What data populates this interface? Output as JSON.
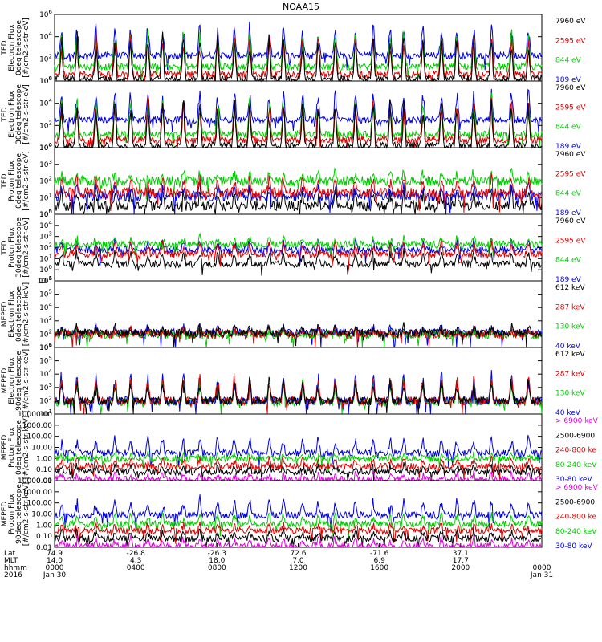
{
  "chart_data": {
    "type": "line",
    "title": "NOAA15",
    "x_range_hours": [
      0,
      24
    ],
    "seed_note": "",
    "panels": [
      {
        "id": "ted-e-0",
        "ylabel": [
          "TED",
          "Electron Flux",
          "0deg telescope",
          "[#/cm2-s-str-eV]"
        ],
        "yscale": "log",
        "ylim": [
          1,
          1000000
        ],
        "ticks": [
          "10^0",
          "10^2",
          "10^4",
          "10^6"
        ],
        "tick_exp": [
          0,
          2,
          4,
          6
        ],
        "tick_format": "pow",
        "legend": [
          {
            "label": "7960 eV",
            "color": "#000000"
          },
          {
            "label": "2595 eV",
            "color": "#dd0000"
          },
          {
            "label": "844 eV",
            "color": "#00cc00"
          },
          {
            "label": "189 eV",
            "color": "#0000dd"
          }
        ],
        "series": [
          {
            "name": "189 eV",
            "color": "#0000dd",
            "base": 2.3,
            "spike": 3.0
          },
          {
            "name": "844 eV",
            "color": "#00cc00",
            "base": 1.3,
            "spike": 3.4
          },
          {
            "name": "2595 eV",
            "color": "#dd0000",
            "base": 0.6,
            "spike": 3.8
          },
          {
            "name": "7960 eV",
            "color": "#000000",
            "base": 0.2,
            "spike": 4.4
          }
        ]
      },
      {
        "id": "ted-e-30",
        "ylabel": [
          "TED",
          "Electron Flux",
          "30deg telescope",
          "[#/cm2-s-str-eV]"
        ],
        "yscale": "log",
        "ylim": [
          1,
          1000000
        ],
        "ticks": [
          "10^0",
          "10^2",
          "10^4",
          "10^6"
        ],
        "tick_exp": [
          0,
          2,
          4,
          6
        ],
        "tick_format": "pow",
        "legend": [
          {
            "label": "7960 eV",
            "color": "#000000"
          },
          {
            "label": "2595 eV",
            "color": "#dd0000"
          },
          {
            "label": "844 eV",
            "color": "#00cc00"
          },
          {
            "label": "189 eV",
            "color": "#0000dd"
          }
        ],
        "series": [
          {
            "name": "189 eV",
            "color": "#0000dd",
            "base": 2.5,
            "spike": 2.8
          },
          {
            "name": "844 eV",
            "color": "#00cc00",
            "base": 1.2,
            "spike": 3.4
          },
          {
            "name": "2595 eV",
            "color": "#dd0000",
            "base": 0.7,
            "spike": 3.8
          },
          {
            "name": "7960 eV",
            "color": "#000000",
            "base": 0.2,
            "spike": 4.3
          }
        ]
      },
      {
        "id": "ted-p-0",
        "ylabel": [
          "TED",
          "Proton Flux",
          "0deg telescope",
          "[#/cm2-s-str-eV]"
        ],
        "yscale": "log",
        "ylim": [
          1,
          10000
        ],
        "ticks": [
          "10^0",
          "10^1",
          "10^2",
          "10^3",
          "10^4"
        ],
        "tick_exp": [
          0,
          1,
          2,
          3,
          4
        ],
        "tick_format": "pow",
        "legend": [
          {
            "label": "7960 eV",
            "color": "#000000"
          },
          {
            "label": "2595 eV",
            "color": "#dd0000"
          },
          {
            "label": "844 eV",
            "color": "#00cc00"
          },
          {
            "label": "189 eV",
            "color": "#0000dd"
          }
        ],
        "series": [
          {
            "name": "7960 eV",
            "color": "#000000",
            "base": 0.5,
            "spike": 1.0
          },
          {
            "name": "189 eV",
            "color": "#0000dd",
            "base": 1.1,
            "spike": 0.6
          },
          {
            "name": "844 eV",
            "color": "#00cc00",
            "base": 2.0,
            "spike": 0.6
          },
          {
            "name": "2595 eV",
            "color": "#dd0000",
            "base": 1.3,
            "spike": 1.0
          }
        ]
      },
      {
        "id": "ted-p-30",
        "ylabel": [
          "TED",
          "Proton Flux",
          "30deg telescope",
          "[#/cm2-s-str-eV]"
        ],
        "yscale": "log",
        "ylim": [
          0.1,
          100000
        ],
        "ticks": [
          "10^-1",
          "10^0",
          "10^1",
          "10^2",
          "10^3",
          "10^4",
          "10^5"
        ],
        "tick_exp": [
          -1,
          0,
          1,
          2,
          3,
          4,
          5
        ],
        "tick_format": "pow",
        "legend": [
          {
            "label": "7960 eV",
            "color": "#000000"
          },
          {
            "label": "2595 eV",
            "color": "#dd0000"
          },
          {
            "label": "844 eV",
            "color": "#00cc00"
          },
          {
            "label": "189 eV",
            "color": "#0000dd"
          }
        ],
        "series": [
          {
            "name": "7960 eV",
            "color": "#000000",
            "base": 0.5,
            "spike": 1.2
          },
          {
            "name": "189 eV",
            "color": "#0000dd",
            "base": 1.8,
            "spike": 0.9
          },
          {
            "name": "844 eV",
            "color": "#00cc00",
            "base": 2.3,
            "spike": 0.7
          },
          {
            "name": "2595 eV",
            "color": "#dd0000",
            "base": 1.4,
            "spike": 1.2
          }
        ]
      },
      {
        "id": "meped-e-0",
        "ylabel": [
          "MEPED",
          "Electron Flux",
          "0deg telescope",
          "[#/cm2-s-str-keV]"
        ],
        "yscale": "log",
        "ylim": [
          10,
          1000000
        ],
        "ticks": [
          "10^1",
          "10^2",
          "10^3",
          "10^4",
          "10^5",
          "10^6"
        ],
        "tick_exp": [
          1,
          2,
          3,
          4,
          5,
          6
        ],
        "tick_format": "pow",
        "legend": [
          {
            "label": "612 keV",
            "color": "#000000"
          },
          {
            "label": "287 keV",
            "color": "#dd0000"
          },
          {
            "label": "130 keV",
            "color": "#00cc00"
          },
          {
            "label": "40 keV",
            "color": "#0000dd"
          }
        ],
        "series": [
          {
            "name": "40 keV",
            "color": "#0000dd",
            "base": 2.1,
            "spike": 0.5
          },
          {
            "name": "130 keV",
            "color": "#00cc00",
            "base": 1.95,
            "spike": 0.3
          },
          {
            "name": "287 keV",
            "color": "#dd0000",
            "base": 2.0,
            "spike": 0.4
          },
          {
            "name": "612 keV",
            "color": "#000000",
            "base": 2.1,
            "spike": 0.6
          }
        ]
      },
      {
        "id": "meped-e-90",
        "ylabel": [
          "MEPED",
          "Electron Flux",
          "90deg telescope",
          "[#/cm2-s-str-keV]"
        ],
        "yscale": "log",
        "ylim": [
          10,
          1000000
        ],
        "ticks": [
          "10^1",
          "10^2",
          "10^3",
          "10^4",
          "10^5",
          "10^6"
        ],
        "tick_exp": [
          1,
          2,
          3,
          4,
          5,
          6
        ],
        "tick_format": "pow",
        "legend": [
          {
            "label": "612 keV",
            "color": "#000000"
          },
          {
            "label": "287 keV",
            "color": "#dd0000"
          },
          {
            "label": "130 keV",
            "color": "#00cc00"
          },
          {
            "label": "40 keV",
            "color": "#0000dd"
          }
        ],
        "series": [
          {
            "name": "130 keV",
            "color": "#00cc00",
            "base": 1.9,
            "spike": 1.8
          },
          {
            "name": "40 keV",
            "color": "#0000dd",
            "base": 2.0,
            "spike": 2.2
          },
          {
            "name": "287 keV",
            "color": "#dd0000",
            "base": 2.0,
            "spike": 2.0
          },
          {
            "name": "612 keV",
            "color": "#000000",
            "base": 2.0,
            "spike": 1.6
          }
        ]
      },
      {
        "id": "meped-p-0",
        "ylabel": [
          "MEPED",
          "Proton Flux",
          "0deg telescope",
          "[#/cm2-s-str-keV]"
        ],
        "yscale": "log",
        "ylim": [
          0.01,
          10000
        ],
        "ticks": [
          "0.01",
          "0.10",
          "1.00",
          "10.00",
          "100.00",
          "1000.00",
          "10000.00"
        ],
        "tick_exp": [
          -2,
          -1,
          0,
          1,
          2,
          3,
          4
        ],
        "tick_format": "plain",
        "legend": [
          {
            "label": "> 6900 keV",
            "color": "#dd00dd"
          },
          {
            "label": "2500-6900",
            "color": "#000000"
          },
          {
            "label": "240-800 ke",
            "color": "#dd0000"
          },
          {
            "label": "80-240 keV",
            "color": "#00cc00"
          },
          {
            "label": "30-80 keV",
            "color": "#0000dd"
          }
        ],
        "series": [
          {
            "name": "30-80 keV",
            "color": "#0000dd",
            "base": 0.5,
            "spike": 1.5
          },
          {
            "name": "80-240 keV",
            "color": "#00cc00",
            "base": 0.0,
            "spike": 0.4
          },
          {
            "name": "240-800 ke",
            "color": "#dd0000",
            "base": -0.7,
            "spike": 0.8
          },
          {
            "name": "2500-6900",
            "color": "#000000",
            "base": -1.2,
            "spike": 0.6
          },
          {
            "name": "> 6900 keV",
            "color": "#dd00dd",
            "base": -1.9,
            "spike": 0.6
          }
        ]
      },
      {
        "id": "meped-p-90",
        "ylabel": [
          "MEPED",
          "Proton Flux",
          "90deg telescope",
          "[#/cm2-s-str-keV]"
        ],
        "yscale": "log",
        "ylim": [
          0.01,
          10000
        ],
        "ticks": [
          "0.01",
          "0.10",
          "1.00",
          "10.00",
          "100.00",
          "1000.00",
          "10000.00"
        ],
        "tick_exp": [
          -2,
          -1,
          0,
          1,
          2,
          3,
          4
        ],
        "tick_format": "plain",
        "legend": [
          {
            "label": "> 6900 keV",
            "color": "#dd00dd"
          },
          {
            "label": "2500-6900",
            "color": "#000000"
          },
          {
            "label": "240-800 ke",
            "color": "#dd0000"
          },
          {
            "label": "80-240 keV",
            "color": "#00cc00"
          },
          {
            "label": "30-80 keV",
            "color": "#0000dd"
          }
        ],
        "series": [
          {
            "name": "30-80 keV",
            "color": "#0000dd",
            "base": 0.9,
            "spike": 1.6
          },
          {
            "name": "80-240 keV",
            "color": "#00cc00",
            "base": 0.1,
            "spike": 1.0
          },
          {
            "name": "240-800 ke",
            "color": "#dd0000",
            "base": -0.5,
            "spike": 0.6
          },
          {
            "name": "2500-6900",
            "color": "#000000",
            "base": -1.2,
            "spike": 0.8
          },
          {
            "name": "> 6900 keV",
            "color": "#dd00dd",
            "base": -1.9,
            "spike": 0.8
          }
        ]
      }
    ],
    "x_axis": {
      "row_labels": [
        "Lat",
        "MLT",
        "hhmm",
        "2016"
      ],
      "columns": [
        {
          "lat": "74.9",
          "mlt": "14.0",
          "hhmm": "0000",
          "date": "Jan 30"
        },
        {
          "lat": "-26.8",
          "mlt": "4.3",
          "hhmm": "0400",
          "date": ""
        },
        {
          "lat": "-26.3",
          "mlt": "18.0",
          "hhmm": "0800",
          "date": ""
        },
        {
          "lat": "72.6",
          "mlt": "7.0",
          "hhmm": "1200",
          "date": ""
        },
        {
          "lat": "-71.6",
          "mlt": "6.9",
          "hhmm": "1600",
          "date": ""
        },
        {
          "lat": "37.1",
          "mlt": "17.7",
          "hhmm": "2000",
          "date": ""
        },
        {
          "lat": "",
          "mlt": "",
          "hhmm": "0000",
          "date": "Jan 31"
        }
      ]
    }
  }
}
